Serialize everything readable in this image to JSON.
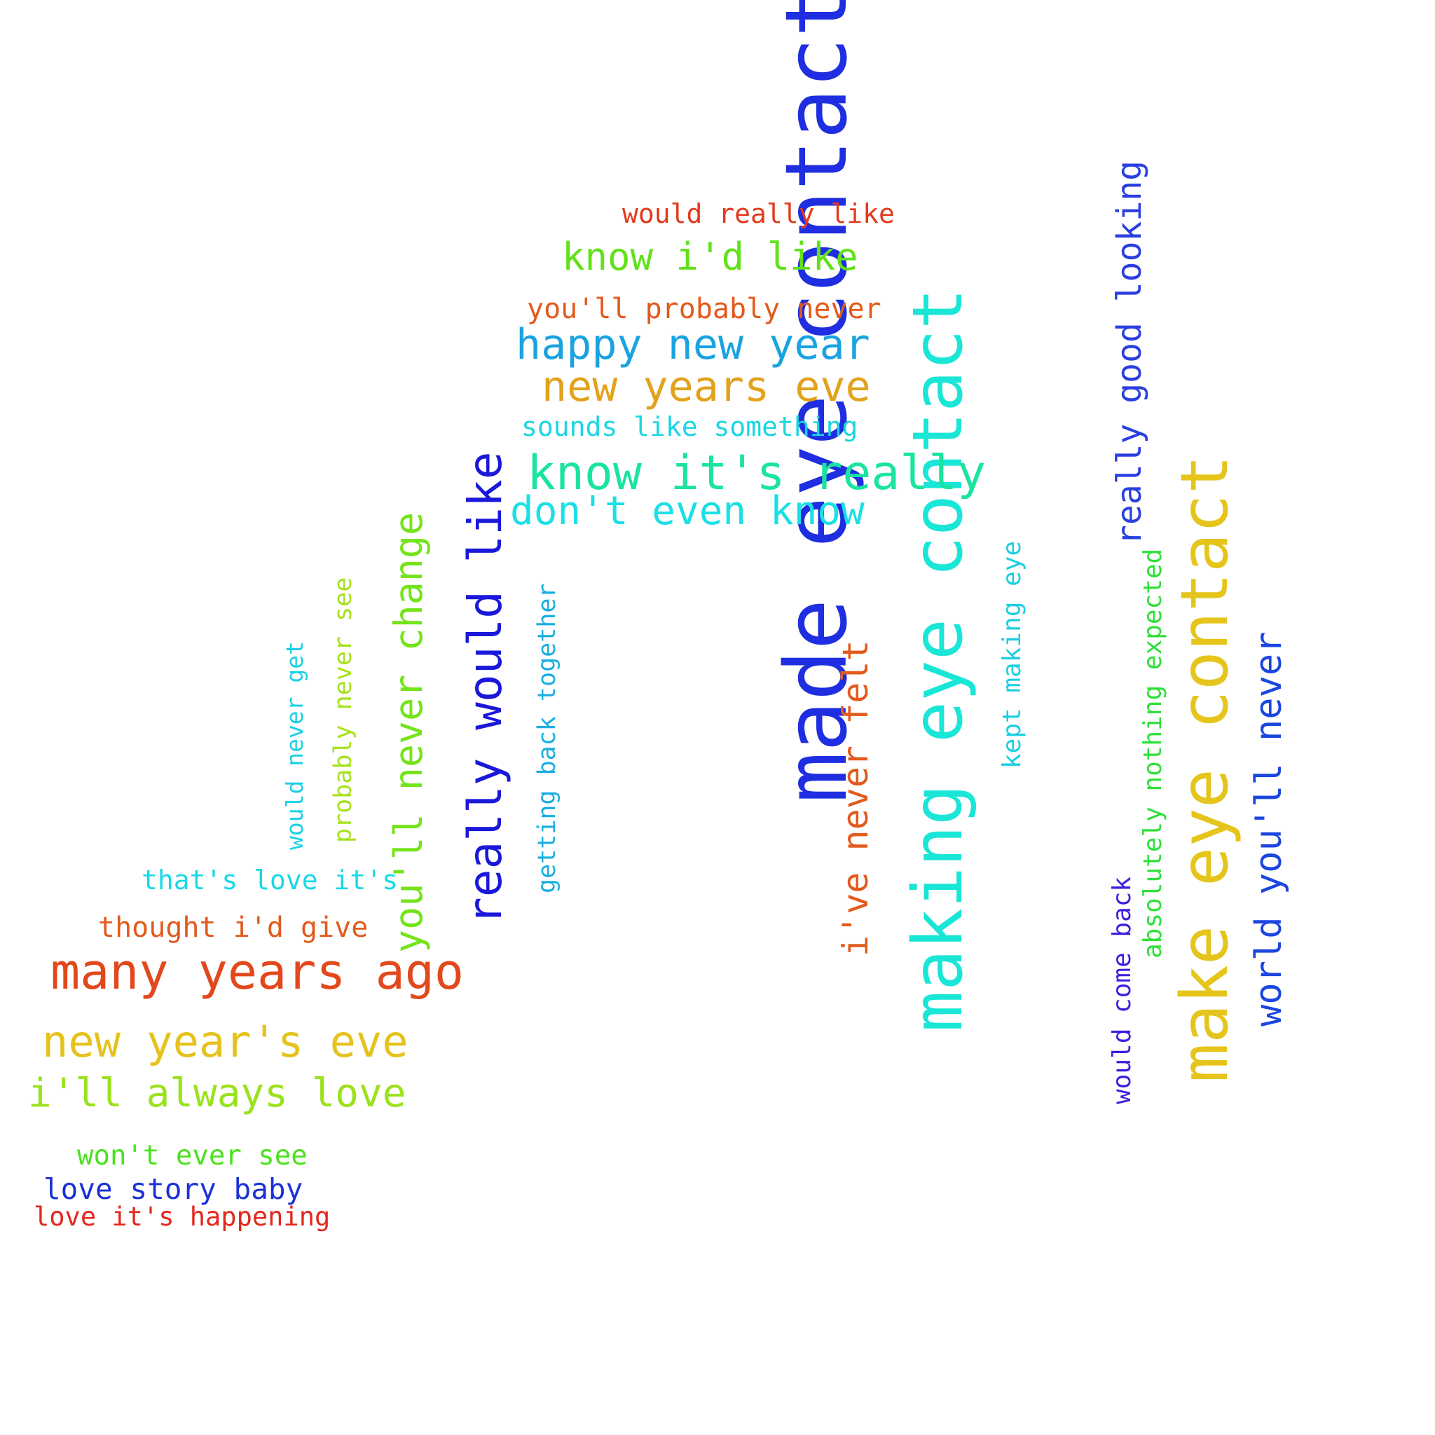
{
  "words": [
    {
      "text": "made eye contact",
      "color": "#1e2ee0",
      "vertical": true
    },
    {
      "text": "making eye contact",
      "color": "#19e6d6",
      "vertical": true
    },
    {
      "text": "make eye contact",
      "color": "#e5c51b",
      "vertical": true
    },
    {
      "text": "really would like",
      "color": "#1a18d9",
      "vertical": true
    },
    {
      "text": "you'll never change",
      "color": "#74e41a",
      "vertical": true
    },
    {
      "text": "world you'll never",
      "color": "#1b46e0",
      "vertical": true
    },
    {
      "text": "really good looking",
      "color": "#2a3fe0",
      "vertical": true
    },
    {
      "text": "i've never felt",
      "color": "#e25a1c",
      "vertical": true
    },
    {
      "text": "absolutely nothing expected",
      "color": "#2ee03a",
      "vertical": true
    },
    {
      "text": "kept making eye",
      "color": "#1ccfe0",
      "vertical": true
    },
    {
      "text": "would come back",
      "color": "#3b1ee0",
      "vertical": true
    },
    {
      "text": "getting back together",
      "color": "#1aaee0",
      "vertical": true
    },
    {
      "text": "probably never see",
      "color": "#a6e21c",
      "vertical": true
    },
    {
      "text": "would never get",
      "color": "#1ad0e6",
      "vertical": true
    },
    {
      "text": "would really like",
      "color": "#e23a1c",
      "vertical": false
    },
    {
      "text": "know i'd like",
      "color": "#62e11a",
      "vertical": false
    },
    {
      "text": "you'll probably never",
      "color": "#e25a1c",
      "vertical": false
    },
    {
      "text": "happy new year",
      "color": "#1aa3e0",
      "vertical": false
    },
    {
      "text": "new years eve",
      "color": "#e2a21c",
      "vertical": false
    },
    {
      "text": "sounds like something",
      "color": "#1ad6e2",
      "vertical": false
    },
    {
      "text": "know it's really",
      "color": "#1ae49e",
      "vertical": false
    },
    {
      "text": "don't even know",
      "color": "#1ae0e6",
      "vertical": false
    },
    {
      "text": "that's love it's",
      "color": "#1ad8e6",
      "vertical": false
    },
    {
      "text": "thought i'd give",
      "color": "#e25a1c",
      "vertical": false
    },
    {
      "text": "many years ago",
      "color": "#e2481c",
      "vertical": false
    },
    {
      "text": "new year's eve",
      "color": "#e6c21c",
      "vertical": false
    },
    {
      "text": "i'll always love",
      "color": "#9ae21c",
      "vertical": false
    },
    {
      "text": "won't ever see",
      "color": "#4ae21c",
      "vertical": false
    },
    {
      "text": "love story baby",
      "color": "#1a30d8",
      "vertical": false
    },
    {
      "text": "love it's happening",
      "color": "#e2281c",
      "vertical": false
    }
  ]
}
